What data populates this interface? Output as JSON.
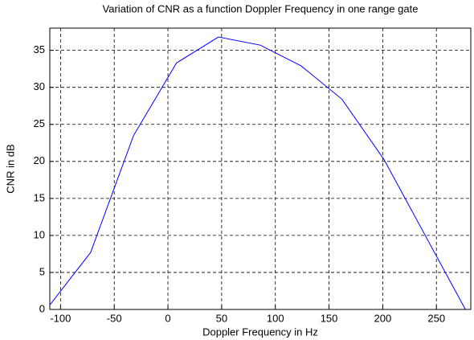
{
  "chart_data": {
    "type": "line",
    "title": "Variation of CNR as a function Doppler Frequency in one range gate",
    "x_label": "Doppler Frequency in Hz",
    "y_label": "CNR in dB",
    "x": [
      -110,
      -72,
      -32,
      8,
      47,
      86,
      124,
      162,
      201,
      277
    ],
    "series": [
      {
        "name": "CNR",
        "color": "#0000ff",
        "values": [
          0.6,
          7.7,
          23.5,
          33.3,
          36.8,
          35.7,
          32.9,
          28.4,
          20.3,
          0
        ]
      }
    ],
    "xlim": [
      -110,
      282
    ],
    "xticks": [
      -100,
      -50,
      0,
      50,
      100,
      150,
      200,
      250
    ],
    "ylim": [
      0,
      38
    ],
    "yticks": [
      0,
      5,
      10,
      15,
      20,
      25,
      30,
      35
    ],
    "grid": true
  }
}
